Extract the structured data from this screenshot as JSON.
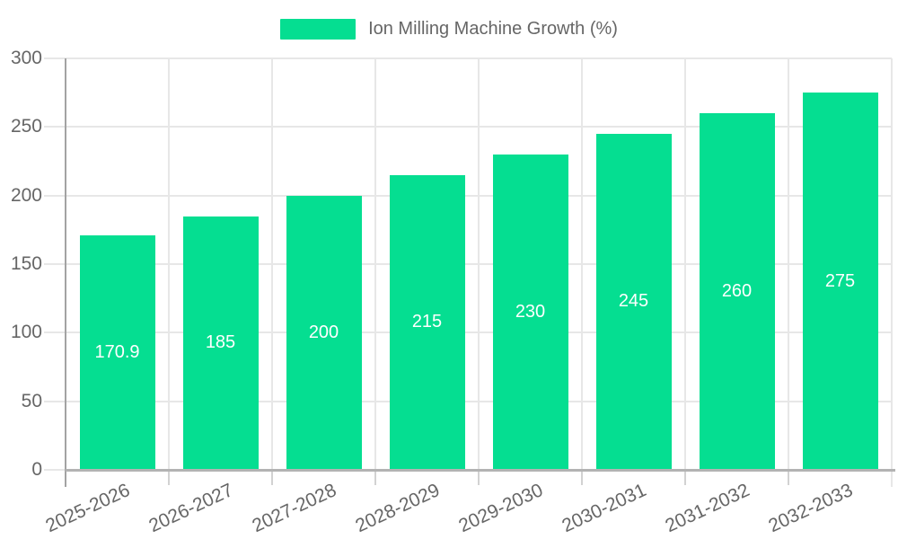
{
  "chart_data": {
    "type": "bar",
    "title": "Ion Milling Machine Growth (%)",
    "categories": [
      "2025-2026",
      "2026-2027",
      "2027-2028",
      "2028-2029",
      "2029-2030",
      "2030-2031",
      "2031-2032",
      "2032-2033"
    ],
    "series": [
      {
        "name": "Ion Milling Machine Growth (%)",
        "values": [
          170.9,
          185,
          200,
          215,
          230,
          245,
          260,
          275
        ]
      }
    ],
    "value_labels": [
      "170.9",
      "185",
      "200",
      "215",
      "230",
      "245",
      "260",
      "275"
    ],
    "xlabel": "",
    "ylabel": "",
    "ylim": [
      0,
      300
    ],
    "y_ticks": [
      0,
      50,
      100,
      150,
      200,
      250,
      300
    ],
    "grid": true,
    "legend_position": "top-center",
    "colors": {
      "bar": "#05DE91",
      "value_label": "#FFFFFF",
      "axis_text": "#666666",
      "grid_line": "#E7E7E7",
      "y_axis_line": "#A3A3A3",
      "x_axis_line": "#B3B3B3",
      "tick_line": "#D2D2D2",
      "background": "#FFFFFF"
    }
  }
}
